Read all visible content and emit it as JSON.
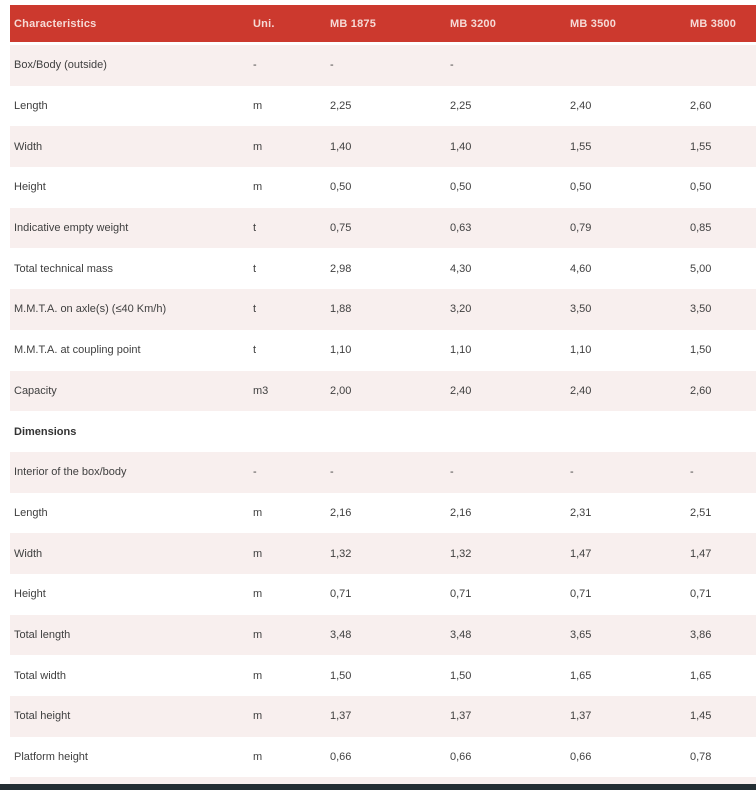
{
  "table": {
    "header": {
      "background": "#cc392e",
      "text_color": "#f6dad6",
      "columns": [
        "Characteristics",
        "Uni.",
        "MB 1875",
        "MB 3200",
        "MB 3500",
        "MB 3800"
      ]
    },
    "zebra": {
      "odd_row_background": "#f8efee",
      "even_row_background": "#ffffff"
    },
    "rows": [
      {
        "label": "Box/Body (outside)",
        "unit": "-",
        "values": [
          "-",
          "-",
          "",
          ""
        ]
      },
      {
        "label": "Length",
        "unit": "m",
        "values": [
          "2,25",
          "2,25",
          "2,40",
          "2,60"
        ]
      },
      {
        "label": "Width",
        "unit": "m",
        "values": [
          "1,40",
          "1,40",
          "1,55",
          "1,55"
        ]
      },
      {
        "label": "Height",
        "unit": "m",
        "values": [
          "0,50",
          "0,50",
          "0,50",
          "0,50"
        ]
      },
      {
        "label": "Indicative empty weight",
        "unit": "t",
        "values": [
          "0,75",
          "0,63",
          "0,79",
          "0,85"
        ]
      },
      {
        "label": "Total technical mass",
        "unit": "t",
        "values": [
          "2,98",
          "4,30",
          "4,60",
          "5,00"
        ]
      },
      {
        "label": "M.M.T.A. on axle(s) (≤40 Km/h)",
        "unit": "t",
        "values": [
          "1,88",
          "3,20",
          "3,50",
          "3,50"
        ]
      },
      {
        "label": "M.M.T.A. at coupling point",
        "unit": "t",
        "values": [
          "1,10",
          "1,10",
          "1,10",
          "1,50"
        ]
      },
      {
        "label": "Capacity",
        "unit": "m3",
        "values": [
          "2,00",
          "2,40",
          "2,40",
          "2,60"
        ]
      },
      {
        "label": "Dimensions",
        "section": true,
        "unit": "",
        "values": [
          "",
          "",
          "",
          ""
        ]
      },
      {
        "label": "Interior of the box/body",
        "unit": "-",
        "values": [
          "-",
          "-",
          "-",
          "-"
        ]
      },
      {
        "label": "Length",
        "unit": "m",
        "values": [
          "2,16",
          "2,16",
          "2,31",
          "2,51"
        ]
      },
      {
        "label": "Width",
        "unit": "m",
        "values": [
          "1,32",
          "1,32",
          "1,47",
          "1,47"
        ]
      },
      {
        "label": "Height",
        "unit": "m",
        "values": [
          "0,71",
          "0,71",
          "0,71",
          "0,71"
        ]
      },
      {
        "label": "Total length",
        "unit": "m",
        "values": [
          "3,48",
          "3,48",
          "3,65",
          "3,86"
        ]
      },
      {
        "label": "Total width",
        "unit": "m",
        "values": [
          "1,50",
          "1,50",
          "1,65",
          "1,65"
        ]
      },
      {
        "label": "Total height",
        "unit": "m",
        "values": [
          "1,37",
          "1,37",
          "1,37",
          "1,45"
        ]
      },
      {
        "label": "Platform height",
        "unit": "m",
        "values": [
          "0,66",
          "0,66",
          "0,66",
          "0,78"
        ]
      }
    ]
  }
}
